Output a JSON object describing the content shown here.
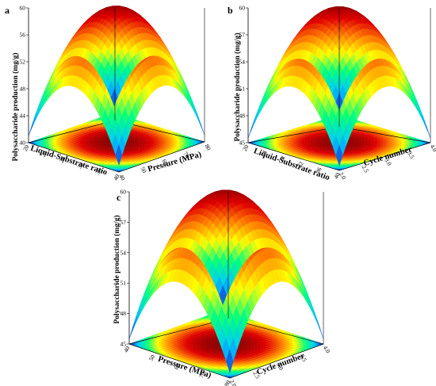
{
  "chart_data": [
    {
      "panel": "a",
      "type": "surface",
      "xlabel": "Liquid-Substrate ratio",
      "ylabel": "Pressure (MPa)",
      "zlabel": "Polysaccharide production (mg/g)",
      "x_ticks": [
        "20",
        "24",
        "28",
        "32",
        "36",
        "40"
      ],
      "y_ticks": [
        "40",
        "50",
        "60",
        "70",
        "80"
      ],
      "z_ticks": [
        "40",
        "44",
        "48",
        "52",
        "56",
        "60"
      ],
      "zlim": [
        40,
        60
      ],
      "peak": 60,
      "edge_min": 41,
      "colors": [
        "#1919c8",
        "#00c8ff",
        "#00ff80",
        "#ffff00",
        "#ff8000",
        "#e00000",
        "#8a0000"
      ]
    },
    {
      "panel": "b",
      "type": "surface",
      "xlabel": "Liquid-Substrate ratio",
      "ylabel": "Cycle number",
      "zlabel": "Polysaccharide production (mg/g)",
      "x_ticks": [
        "20",
        "24",
        "28",
        "32",
        "36",
        "40"
      ],
      "y_ticks": [
        "2.0",
        "2.5",
        "3.0",
        "3.5",
        "4.0"
      ],
      "z_ticks": [
        "45",
        "48",
        "51",
        "54",
        "57",
        "60"
      ],
      "zlim": [
        45,
        60
      ],
      "peak": 60,
      "edge_min": 45.5,
      "colors": [
        "#1919c8",
        "#00c8ff",
        "#00ff80",
        "#ffff00",
        "#ff8000",
        "#e00000",
        "#8a0000"
      ]
    },
    {
      "panel": "c",
      "type": "surface",
      "xlabel": "Pressure (MPa)",
      "ylabel": "Cycle number",
      "zlabel": "Polysaccharide production (mg/g)",
      "x_ticks": [
        "40",
        "50",
        "60",
        "70",
        "80"
      ],
      "y_ticks": [
        "2.0",
        "2.5",
        "3.0",
        "3.5",
        "4.0"
      ],
      "z_ticks": [
        "45",
        "48",
        "51",
        "54",
        "57",
        "60"
      ],
      "zlim": [
        45,
        60
      ],
      "peak": 60,
      "edge_min": 45.5,
      "colors": [
        "#1919c8",
        "#00c8ff",
        "#00ff80",
        "#ffff00",
        "#ff8000",
        "#e00000",
        "#8a0000"
      ]
    }
  ]
}
